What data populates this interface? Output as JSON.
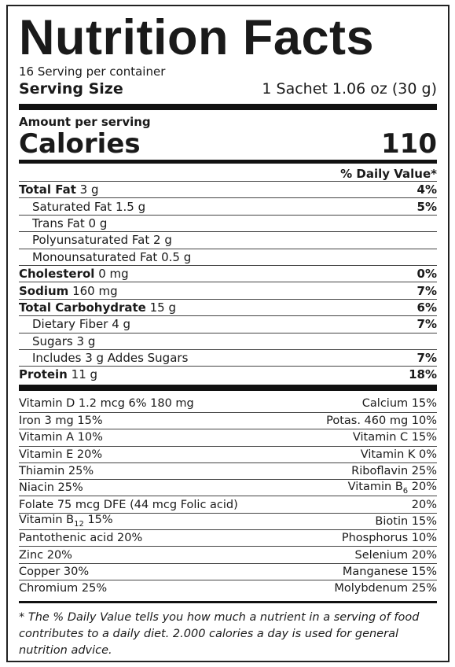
{
  "header": {
    "title": "Nutrition Facts",
    "servings": "16 Serving per container",
    "serving_size_label": "Serving Size",
    "serving_size_value": "1 Sachet 1.06 oz (30 g)"
  },
  "calories": {
    "amount_label": "Amount per serving",
    "label": "Calories",
    "value": "110",
    "daily_value_header": "% Daily Value*"
  },
  "nutrients": [
    {
      "name": "Total Fat",
      "amount": "3 g",
      "dv": "4%",
      "bold": true,
      "indent": false
    },
    {
      "name": "Saturated Fat",
      "amount": "1.5 g",
      "dv": "5%",
      "bold": false,
      "indent": true
    },
    {
      "name": "Trans Fat",
      "amount": "0 g",
      "dv": null,
      "bold": false,
      "indent": true
    },
    {
      "name": "Polyunsaturated Fat",
      "amount": "2 g",
      "dv": null,
      "bold": false,
      "indent": true
    },
    {
      "name": "Monounsaturated Fat",
      "amount": "0.5 g",
      "dv": null,
      "bold": false,
      "indent": true
    },
    {
      "name": "Cholesterol",
      "amount": "0 mg",
      "dv": "0%",
      "bold": true,
      "indent": false
    },
    {
      "name": "Sodium",
      "amount": "160 mg",
      "dv": "7%",
      "bold": true,
      "indent": false
    },
    {
      "name": "Total Carbohydrate",
      "amount": "15 g",
      "dv": "6%",
      "bold": true,
      "indent": false
    },
    {
      "name": "Dietary Fiber",
      "amount": "4 g",
      "dv": "7%",
      "bold": false,
      "indent": true
    },
    {
      "name": "Sugars",
      "amount": "3 g",
      "dv": null,
      "bold": false,
      "indent": true
    },
    {
      "name": "Includes",
      "amount": "3 g Addes Sugars",
      "dv": "7%",
      "bold": false,
      "indent": true
    },
    {
      "name": "Protein",
      "amount": "11 g",
      "dv": "18%",
      "bold": true,
      "indent": false
    }
  ],
  "vitamins": [
    {
      "left": "Vitamin D 1.2 mcg 6%  180 mg",
      "right": "Calcium 15%"
    },
    {
      "left": "Iron 3 mg 15%",
      "right": "Potas. 460 mg 10%"
    },
    {
      "left": "Vitamin A 10%",
      "right": "Vitamin C 15%"
    },
    {
      "left": "Vitamin E 20%",
      "right": "Vitamin K 0%"
    },
    {
      "left": "Thiamin 25%",
      "right": "Riboflavin 25%"
    },
    {
      "left": "Niacin 25%",
      "right": {
        "pre": "Vitamin B",
        "sub": "6",
        "post": " 20%"
      }
    },
    {
      "left": "Folate 75 mcg DFE (44 mcg Folic acid)",
      "right": "20%"
    },
    {
      "left": {
        "pre": "Vitamin B",
        "sub": "12",
        "post": " 15%"
      },
      "right": "Biotin 15%"
    },
    {
      "left": "Pantothenic acid 20%",
      "right": "Phosphorus 10%"
    },
    {
      "left": "Zinc 20%",
      "right": "Selenium 20%"
    },
    {
      "left": "Copper 30%",
      "right": "Manganese 15%"
    },
    {
      "left": "Chromium 25%",
      "right": "Molybdenum 25%"
    }
  ],
  "footnote": "* The % Daily Value tells you how much a nutrient in a serving of food contributes to a daily diet. 2.000 calories a day is used for general nutrition advice."
}
